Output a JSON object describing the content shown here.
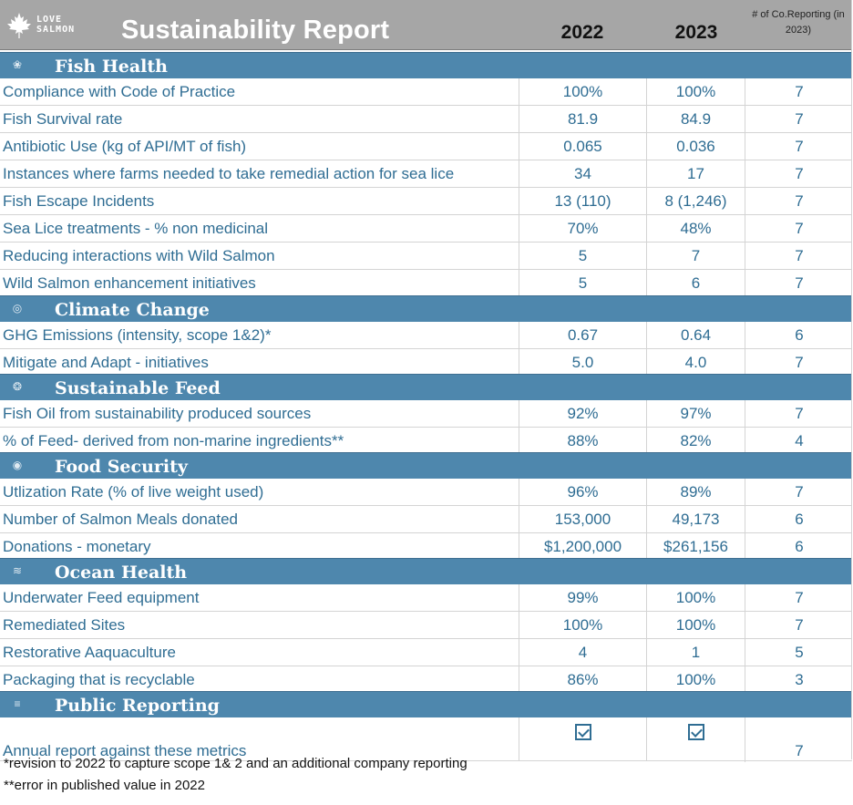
{
  "header": {
    "logo_line1": "LOVE",
    "logo_line2": "SALMON",
    "title": "Sustainability Report",
    "year1": "2022",
    "year2": "2023",
    "reporting_label": "# of Co.Reporting (in 2023)"
  },
  "sections": [
    {
      "title": "Fish Health",
      "icon": "fish-icon",
      "rows": [
        {
          "label": "Compliance with Code of Practice",
          "v2022": "100%",
          "v2023": "100%",
          "count": "7"
        },
        {
          "label": "Fish Survival rate",
          "v2022": "81.9",
          "v2023": "84.9",
          "count": "7"
        },
        {
          "label": "Antibiotic Use (kg of API/MT of fish)",
          "v2022": "0.065",
          "v2023": "0.036",
          "count": "7"
        },
        {
          "label": "Instances where farms needed to take remedial action for sea lice",
          "v2022": "34",
          "v2023": "17",
          "count": "7"
        },
        {
          "label": "Fish Escape Incidents",
          "v2022": "13 (110)",
          "v2023": "8 (1,246)",
          "count": "7"
        },
        {
          "label": "Sea Lice treatments - % non medicinal",
          "v2022": "70%",
          "v2023": "48%",
          "count": "7"
        },
        {
          "label": "Reducing interactions with Wild Salmon",
          "v2022": "5",
          "v2023": "7",
          "count": "7"
        },
        {
          "label": "Wild Salmon enhancement initiatives",
          "v2022": "5",
          "v2023": "6",
          "count": "7"
        }
      ]
    },
    {
      "title": "Climate Change",
      "icon": "globe-icon",
      "rows": [
        {
          "label": "GHG Emissions (intensity, scope 1&2)*",
          "v2022": "0.67",
          "v2023": "0.64",
          "count": "6"
        },
        {
          "label": "Mitigate and Adapt - initiatives",
          "v2022": "5.0",
          "v2023": "4.0",
          "count": "7"
        }
      ]
    },
    {
      "title": "Sustainable Feed",
      "icon": "feed-icon",
      "rows": [
        {
          "label": "Fish Oil from sustainability produced sources",
          "v2022": "92%",
          "v2023": "97%",
          "count": "7"
        },
        {
          "label": "% of Feed- derived from non-marine ingredients**",
          "v2022": "88%",
          "v2023": "82%",
          "count": "4"
        }
      ]
    },
    {
      "title": "Food Security",
      "icon": "plate-icon",
      "rows": [
        {
          "label": "Utlization Rate (% of live weight used)",
          "v2022": "96%",
          "v2023": "89%",
          "count": "7"
        },
        {
          "label": "Number of Salmon Meals donated",
          "v2022": "153,000",
          "v2023": "49,173",
          "count": "6"
        },
        {
          "label": "Donations - monetary",
          "v2022": "$1,200,000",
          "v2023": "$261,156",
          "count": "6"
        }
      ]
    },
    {
      "title": "Ocean Health",
      "icon": "wave-icon",
      "rows": [
        {
          "label": "Underwater Feed equipment",
          "v2022": "99%",
          "v2023": "100%",
          "count": "7"
        },
        {
          "label": "Remediated Sites",
          "v2022": "100%",
          "v2023": "100%",
          "count": "7"
        },
        {
          "label": "Restorative Aaquaculture",
          "v2022": "4",
          "v2023": "1",
          "count": "5"
        },
        {
          "label": "Packaging that is recyclable",
          "v2022": "86%",
          "v2023": "100%",
          "count": "3"
        }
      ]
    },
    {
      "title": "Public Reporting",
      "icon": "document-icon",
      "rows": [
        {
          "label": "Annual report against these metrics",
          "v2022": "checked",
          "v2023": "checked",
          "count": "7"
        }
      ]
    }
  ],
  "footnotes": [
    "*revision to 2022 to capture scope 1& 2 and an additional company reporting",
    "**error in published value in 2022"
  ]
}
